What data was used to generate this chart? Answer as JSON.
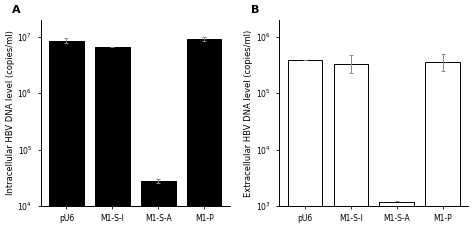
{
  "panel_A": {
    "label": "A",
    "categories": [
      "pU6",
      "M1-S-I",
      "M1-S-A",
      "M1-P"
    ],
    "values": [
      8500000.0,
      6500000.0,
      28000.0,
      9000000.0
    ],
    "yerr_up": [
      800000.0,
      0,
      2000.0,
      700000.0
    ],
    "yerr_dn": [
      800000.0,
      0,
      2000.0,
      700000.0
    ],
    "bar_color": "black",
    "bar_edgecolor": "black",
    "ylabel": "Intracellular HBV DNA level (copies/ml)",
    "ylim": [
      10000.0,
      20000000.0
    ],
    "yticks": [
      10000.0,
      100000.0,
      1000000.0,
      10000000.0
    ]
  },
  "panel_B": {
    "label": "B",
    "categories": [
      "pU6",
      "M1-S-I",
      "M1-S-A",
      "M1-P"
    ],
    "values": [
      380000.0,
      330000.0,
      1200.0,
      350000.0
    ],
    "yerr_up": [
      0,
      150000.0,
      0,
      140000.0
    ],
    "yerr_dn": [
      0,
      100000.0,
      0,
      100000.0
    ],
    "bar_color": "white",
    "bar_edgecolor": "black",
    "ylabel": "Extracellular HBV DNA level (copies/ml)",
    "ylim": [
      1000.0,
      2000000.0
    ],
    "yticks": [
      1000.0,
      10000.0,
      100000.0,
      1000000.0
    ]
  },
  "background_color": "#ffffff",
  "tick_fontsize": 5.5,
  "label_fontsize": 6.0,
  "panel_label_fontsize": 8,
  "bar_width": 0.75,
  "ecolor": "#888888",
  "elinewidth": 0.7,
  "capsize": 1.5,
  "capthick": 0.7
}
